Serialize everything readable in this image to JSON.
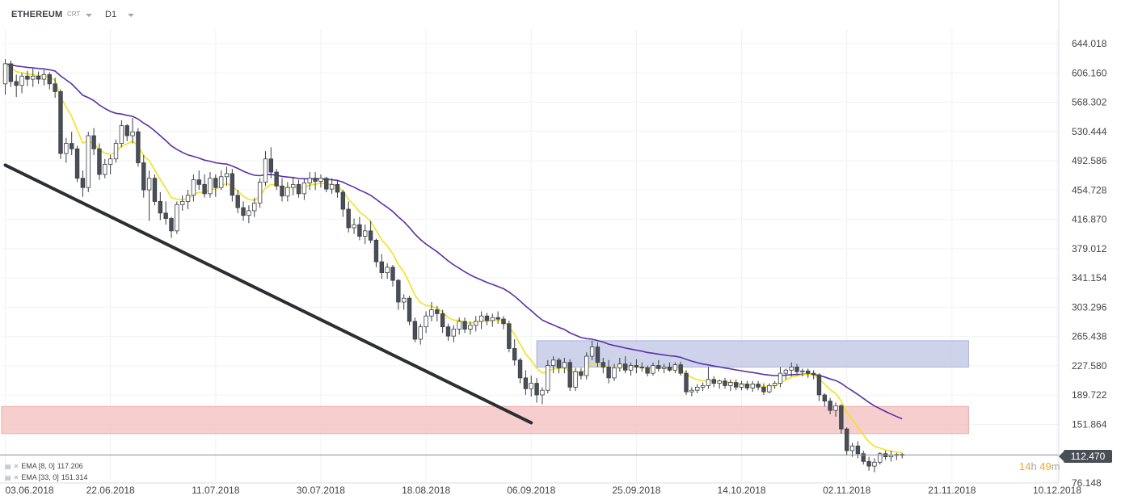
{
  "header": {
    "symbol": "ETHEREUM",
    "data_source": "CRT",
    "timeframe": "D1"
  },
  "indicators": [
    {
      "label": "EMA [8, 0]",
      "value": "117.206",
      "color": "#f2e21e"
    },
    {
      "label": "EMA [33, 0]",
      "value": "151.314",
      "color": "#5b2fa6"
    }
  ],
  "current_price": "112.470",
  "countdown": {
    "hours": "14",
    "h_unit": "h",
    "minutes": "49",
    "m_unit": "m"
  },
  "colors": {
    "bull_fill": "#ffffff",
    "bear_fill": "#4a4f57",
    "candle_outline": "#3a3f47",
    "ema_fast": "#f2e21e",
    "ema_slow": "#5b2fa6",
    "resistance_zone": "#c6cbe8",
    "support_zone": "#f5c6c6",
    "trendline": "#2b2f33",
    "current_price_line": "#8c9199"
  },
  "chart_data": {
    "type": "candlestick",
    "title": "",
    "xlabel": "",
    "ylabel": "",
    "y_ticks": [
      "644.018",
      "606.160",
      "568.302",
      "530.444",
      "492.586",
      "454.728",
      "416.870",
      "379.012",
      "341.154",
      "303.296",
      "265.438",
      "227.580",
      "189.722",
      "151.864",
      "76.148"
    ],
    "x_ticks": [
      "03.06.2018",
      "22.06.2018",
      "11.07.2018",
      "30.07.2018",
      "18.08.2018",
      "06.09.2018",
      "25.09.2018",
      "14.10.2018",
      "02.11.2018",
      "21.11.2018",
      "10.12.2018"
    ],
    "ylim": [
      62,
      683
    ],
    "x_start": "03.06.2018",
    "zones": [
      {
        "name": "resistance",
        "y1": 226,
        "y2": 260,
        "from": "07.09.2018",
        "to": "24.11.2018"
      },
      {
        "name": "support",
        "y1": 140,
        "y2": 175,
        "from": "03.06.2018",
        "to": "24.11.2018"
      }
    ],
    "trendline": {
      "from": [
        "03.06.2018",
        487
      ],
      "to": [
        "06.09.2018",
        154
      ]
    },
    "current_price": 112.47,
    "ohlc": [
      [
        592,
        624,
        578,
        618
      ],
      [
        618,
        622,
        588,
        595
      ],
      [
        595,
        604,
        575,
        590
      ],
      [
        590,
        606,
        580,
        602
      ],
      [
        602,
        609,
        589,
        598
      ],
      [
        598,
        612,
        588,
        602
      ],
      [
        602,
        608,
        592,
        598
      ],
      [
        598,
        610,
        590,
        604
      ],
      [
        604,
        607,
        585,
        592
      ],
      [
        592,
        600,
        574,
        582
      ],
      [
        582,
        585,
        495,
        502
      ],
      [
        502,
        522,
        490,
        515
      ],
      [
        515,
        530,
        500,
        508
      ],
      [
        508,
        512,
        465,
        470
      ],
      [
        470,
        480,
        446,
        458
      ],
      [
        458,
        530,
        452,
        525
      ],
      [
        525,
        535,
        500,
        508
      ],
      [
        508,
        515,
        468,
        475
      ],
      [
        475,
        495,
        470,
        488
      ],
      [
        488,
        500,
        475,
        495
      ],
      [
        495,
        520,
        490,
        515
      ],
      [
        515,
        545,
        510,
        538
      ],
      [
        538,
        540,
        518,
        525
      ],
      [
        525,
        548,
        515,
        530
      ],
      [
        530,
        535,
        485,
        490
      ],
      [
        490,
        500,
        445,
        455
      ],
      [
        455,
        480,
        415,
        470
      ],
      [
        470,
        475,
        435,
        440
      ],
      [
        440,
        452,
        416,
        425
      ],
      [
        425,
        440,
        410,
        418
      ],
      [
        418,
        420,
        393,
        402
      ],
      [
        402,
        440,
        398,
        436
      ],
      [
        436,
        448,
        428,
        440
      ],
      [
        440,
        455,
        430,
        448
      ],
      [
        448,
        475,
        440,
        468
      ],
      [
        468,
        480,
        455,
        462
      ],
      [
        462,
        475,
        445,
        450
      ],
      [
        450,
        478,
        445,
        470
      ],
      [
        470,
        475,
        446,
        458
      ],
      [
        458,
        480,
        455,
        472
      ],
      [
        472,
        485,
        460,
        476
      ],
      [
        476,
        482,
        440,
        448
      ],
      [
        448,
        455,
        425,
        432
      ],
      [
        432,
        440,
        415,
        422
      ],
      [
        422,
        435,
        412,
        428
      ],
      [
        428,
        445,
        420,
        438
      ],
      [
        438,
        470,
        432,
        465
      ],
      [
        465,
        505,
        460,
        495
      ],
      [
        495,
        510,
        470,
        478
      ],
      [
        478,
        482,
        455,
        460
      ],
      [
        460,
        470,
        440,
        447
      ],
      [
        447,
        465,
        440,
        458
      ],
      [
        458,
        472,
        448,
        462
      ],
      [
        462,
        468,
        445,
        450
      ],
      [
        450,
        470,
        442,
        464
      ],
      [
        464,
        478,
        455,
        470
      ],
      [
        470,
        478,
        455,
        466
      ],
      [
        466,
        475,
        458,
        470
      ],
      [
        470,
        472,
        452,
        456
      ],
      [
        456,
        470,
        450,
        462
      ],
      [
        462,
        468,
        445,
        452
      ],
      [
        452,
        455,
        420,
        430
      ],
      [
        430,
        440,
        400,
        406
      ],
      [
        406,
        418,
        398,
        410
      ],
      [
        410,
        420,
        390,
        395
      ],
      [
        395,
        410,
        385,
        402
      ],
      [
        402,
        415,
        386,
        390
      ],
      [
        390,
        392,
        355,
        362
      ],
      [
        362,
        372,
        340,
        348
      ],
      [
        348,
        360,
        340,
        355
      ],
      [
        355,
        358,
        330,
        338
      ],
      [
        338,
        340,
        300,
        310
      ],
      [
        310,
        320,
        300,
        315
      ],
      [
        315,
        318,
        280,
        285
      ],
      [
        285,
        290,
        258,
        262
      ],
      [
        262,
        282,
        255,
        278
      ],
      [
        278,
        298,
        270,
        292
      ],
      [
        292,
        310,
        285,
        300
      ],
      [
        300,
        305,
        285,
        295
      ],
      [
        295,
        300,
        270,
        278
      ],
      [
        278,
        282,
        260,
        266
      ],
      [
        266,
        280,
        258,
        275
      ],
      [
        275,
        290,
        268,
        285
      ],
      [
        285,
        290,
        270,
        275
      ],
      [
        275,
        285,
        268,
        280
      ],
      [
        280,
        292,
        272,
        285
      ],
      [
        285,
        298,
        275,
        292
      ],
      [
        292,
        296,
        280,
        286
      ],
      [
        286,
        295,
        278,
        290
      ],
      [
        290,
        298,
        282,
        288
      ],
      [
        288,
        292,
        275,
        282
      ],
      [
        282,
        286,
        245,
        250
      ],
      [
        250,
        262,
        228,
        235
      ],
      [
        235,
        238,
        205,
        212
      ],
      [
        212,
        222,
        190,
        198
      ],
      [
        198,
        215,
        188,
        205
      ],
      [
        205,
        212,
        180,
        190
      ],
      [
        190,
        200,
        178,
        196
      ],
      [
        196,
        235,
        192,
        228
      ],
      [
        228,
        240,
        218,
        235
      ],
      [
        235,
        238,
        218,
        225
      ],
      [
        225,
        238,
        218,
        232
      ],
      [
        232,
        236,
        195,
        200
      ],
      [
        200,
        225,
        195,
        220
      ],
      [
        220,
        225,
        210,
        215
      ],
      [
        215,
        245,
        210,
        240
      ],
      [
        240,
        260,
        235,
        252
      ],
      [
        252,
        258,
        226,
        232
      ],
      [
        232,
        238,
        218,
        226
      ],
      [
        226,
        235,
        205,
        212
      ],
      [
        212,
        230,
        208,
        225
      ],
      [
        225,
        238,
        220,
        230
      ],
      [
        230,
        240,
        218,
        222
      ],
      [
        222,
        232,
        215,
        228
      ],
      [
        228,
        236,
        218,
        226
      ],
      [
        226,
        232,
        220,
        225
      ],
      [
        225,
        228,
        214,
        218
      ],
      [
        218,
        232,
        215,
        228
      ],
      [
        228,
        235,
        220,
        224
      ],
      [
        224,
        230,
        218,
        226
      ],
      [
        226,
        232,
        220,
        222
      ],
      [
        222,
        232,
        218,
        229
      ],
      [
        229,
        233,
        215,
        218
      ],
      [
        218,
        222,
        190,
        194
      ],
      [
        194,
        200,
        188,
        196
      ],
      [
        196,
        204,
        192,
        200
      ],
      [
        200,
        206,
        195,
        202
      ],
      [
        202,
        226,
        198,
        210
      ],
      [
        210,
        214,
        200,
        205
      ],
      [
        205,
        210,
        198,
        208
      ],
      [
        208,
        212,
        198,
        202
      ],
      [
        202,
        210,
        195,
        206
      ],
      [
        206,
        210,
        196,
        200
      ],
      [
        200,
        208,
        196,
        204
      ],
      [
        204,
        208,
        196,
        199
      ],
      [
        199,
        208,
        194,
        204
      ],
      [
        204,
        208,
        196,
        200
      ],
      [
        200,
        205,
        190,
        194
      ],
      [
        194,
        205,
        192,
        202
      ],
      [
        202,
        208,
        198,
        205
      ],
      [
        205,
        226,
        200,
        218
      ],
      [
        218,
        224,
        210,
        222
      ],
      [
        222,
        232,
        214,
        226
      ],
      [
        226,
        230,
        216,
        220
      ],
      [
        220,
        224,
        214,
        221
      ],
      [
        221,
        224,
        212,
        218
      ],
      [
        218,
        222,
        210,
        216
      ],
      [
        216,
        218,
        182,
        190
      ],
      [
        190,
        192,
        175,
        182
      ],
      [
        182,
        186,
        165,
        170
      ],
      [
        170,
        180,
        162,
        176
      ],
      [
        176,
        178,
        140,
        146
      ],
      [
        146,
        148,
        112,
        118
      ],
      [
        118,
        128,
        110,
        124
      ],
      [
        124,
        130,
        108,
        114
      ],
      [
        114,
        118,
        100,
        104
      ],
      [
        104,
        110,
        92,
        98
      ],
      [
        98,
        108,
        90,
        103
      ],
      [
        103,
        116,
        100,
        114
      ],
      [
        114,
        118,
        106,
        110
      ],
      [
        110,
        118,
        104,
        112
      ],
      [
        112,
        115,
        106,
        113
      ],
      [
        113,
        115,
        108,
        112.47
      ]
    ]
  }
}
